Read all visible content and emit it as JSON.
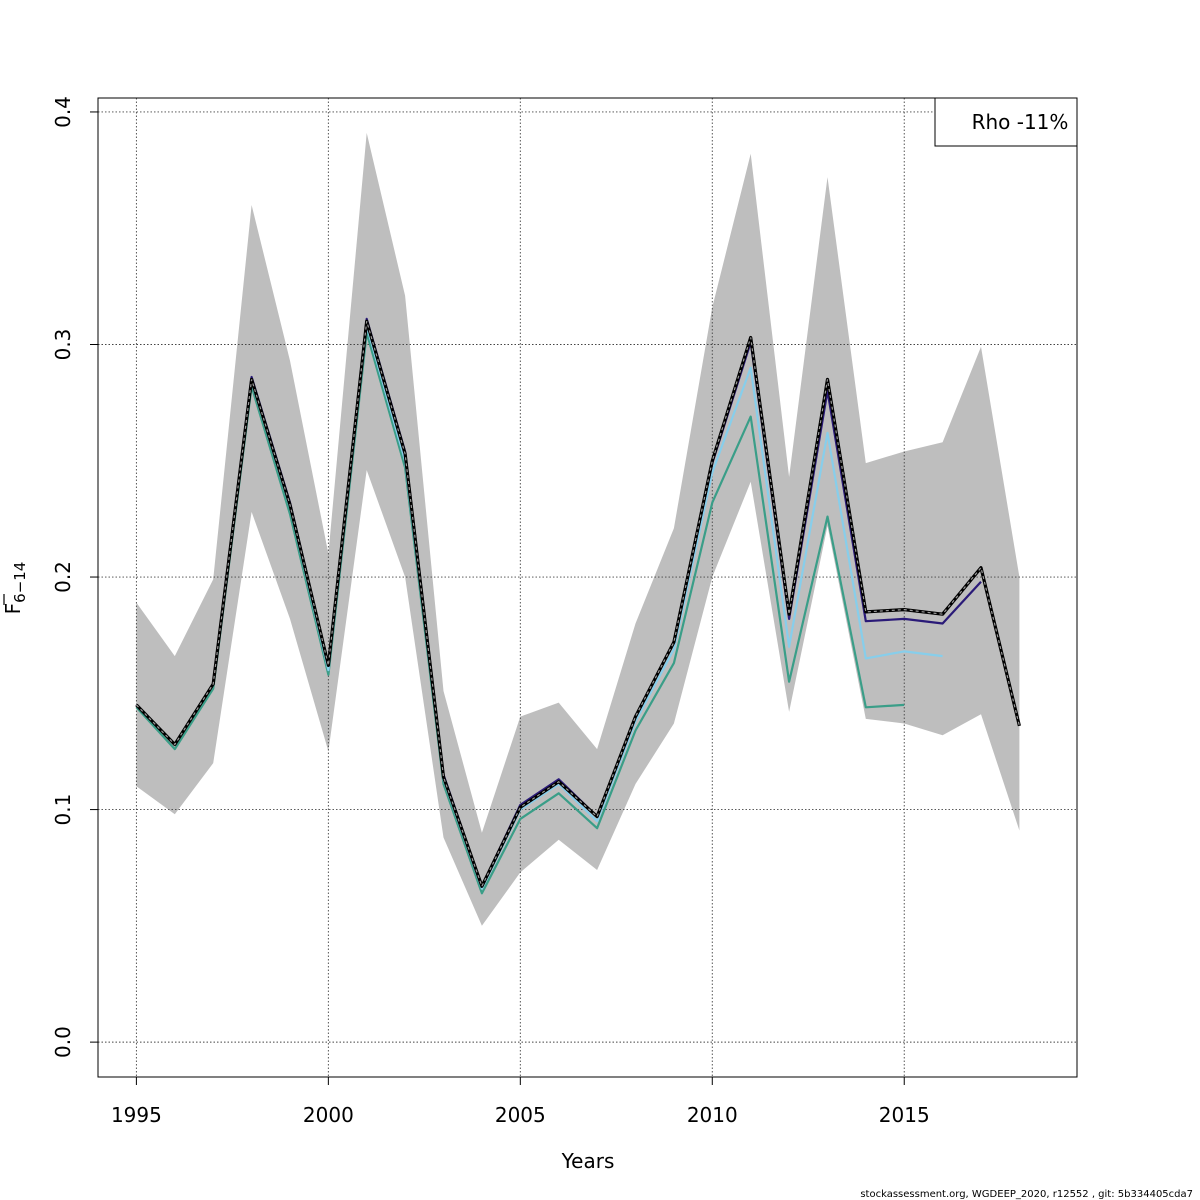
{
  "chart_data": {
    "type": "line",
    "xlabel": "Years",
    "ylabel": {
      "base": "F",
      "sub": "6−14"
    },
    "xlim": [
      1994,
      2019.5
    ],
    "ylim": [
      -0.015,
      0.406
    ],
    "xticks": [
      1995,
      2000,
      2005,
      2010,
      2015
    ],
    "yticks": [
      0.0,
      0.1,
      0.2,
      0.3,
      0.4
    ],
    "grid": true,
    "legend": {
      "position": "top-right",
      "text": "Rho -11%"
    },
    "band": {
      "years": [
        1995,
        1996,
        1997,
        1998,
        1999,
        2000,
        2001,
        2002,
        2003,
        2004,
        2005,
        2006,
        2007,
        2008,
        2009,
        2010,
        2011,
        2012,
        2013,
        2014,
        2015,
        2016,
        2017,
        2018
      ],
      "upper": [
        0.189,
        0.166,
        0.199,
        0.36,
        0.293,
        0.21,
        0.391,
        0.321,
        0.151,
        0.09,
        0.14,
        0.146,
        0.126,
        0.18,
        0.221,
        0.316,
        0.382,
        0.243,
        0.372,
        0.249,
        0.254,
        0.258,
        0.299,
        0.2
      ],
      "lower": [
        0.11,
        0.098,
        0.12,
        0.228,
        0.182,
        0.125,
        0.246,
        0.2,
        0.088,
        0.05,
        0.073,
        0.087,
        0.074,
        0.111,
        0.137,
        0.2,
        0.241,
        0.142,
        0.222,
        0.139,
        0.137,
        0.132,
        0.141,
        0.091
      ]
    },
    "series": [
      {
        "color": "#3a9e88",
        "dashed": false,
        "years": [
          1995,
          1996,
          1997,
          1998,
          1999,
          2000,
          2001,
          2002,
          2003,
          2004,
          2005,
          2006,
          2007,
          2008,
          2009,
          2010,
          2011,
          2012,
          2013,
          2014,
          2015
        ],
        "values": [
          0.144,
          0.126,
          0.152,
          0.282,
          0.227,
          0.158,
          0.305,
          0.247,
          0.111,
          0.064,
          0.096,
          0.107,
          0.092,
          0.134,
          0.163,
          0.232,
          0.269,
          0.155,
          0.226,
          0.144,
          0.145
        ]
      },
      {
        "color": "#87ceeb",
        "dashed": false,
        "years": [
          1995,
          1996,
          1997,
          1998,
          1999,
          2000,
          2001,
          2002,
          2003,
          2004,
          2005,
          2006,
          2007,
          2008,
          2009,
          2010,
          2011,
          2012,
          2013,
          2014,
          2015,
          2016
        ],
        "values": [
          0.145,
          0.128,
          0.154,
          0.284,
          0.23,
          0.16,
          0.308,
          0.25,
          0.113,
          0.066,
          0.1,
          0.111,
          0.095,
          0.138,
          0.169,
          0.245,
          0.29,
          0.17,
          0.262,
          0.165,
          0.168,
          0.166
        ]
      },
      {
        "color": "#2a1a78",
        "dashed": false,
        "years": [
          1995,
          1996,
          1997,
          1998,
          1999,
          2000,
          2001,
          2002,
          2003,
          2004,
          2005,
          2006,
          2007,
          2008,
          2009,
          2010,
          2011,
          2012,
          2013,
          2014,
          2015,
          2016,
          2017
        ],
        "values": [
          0.145,
          0.128,
          0.154,
          0.286,
          0.232,
          0.162,
          0.311,
          0.254,
          0.115,
          0.067,
          0.102,
          0.113,
          0.097,
          0.14,
          0.172,
          0.249,
          0.301,
          0.182,
          0.28,
          0.181,
          0.182,
          0.18,
          0.198
        ]
      },
      {
        "color": "#000000",
        "dashed": true,
        "band_line": true,
        "years": [
          1995,
          1996,
          1997,
          1998,
          1999,
          2000,
          2001,
          2002,
          2003,
          2004,
          2005,
          2006,
          2007,
          2008,
          2009,
          2010,
          2011,
          2012,
          2013,
          2014,
          2015,
          2016,
          2017,
          2018
        ],
        "values": [
          0.145,
          0.128,
          0.154,
          0.285,
          0.231,
          0.162,
          0.31,
          0.253,
          0.114,
          0.067,
          0.101,
          0.112,
          0.097,
          0.14,
          0.172,
          0.25,
          0.303,
          0.184,
          0.285,
          0.185,
          0.186,
          0.184,
          0.204,
          0.136
        ]
      }
    ]
  },
  "footer": "stockassessment.org, WGDEEP_2020, r12552 , git: 5b334405cda7"
}
